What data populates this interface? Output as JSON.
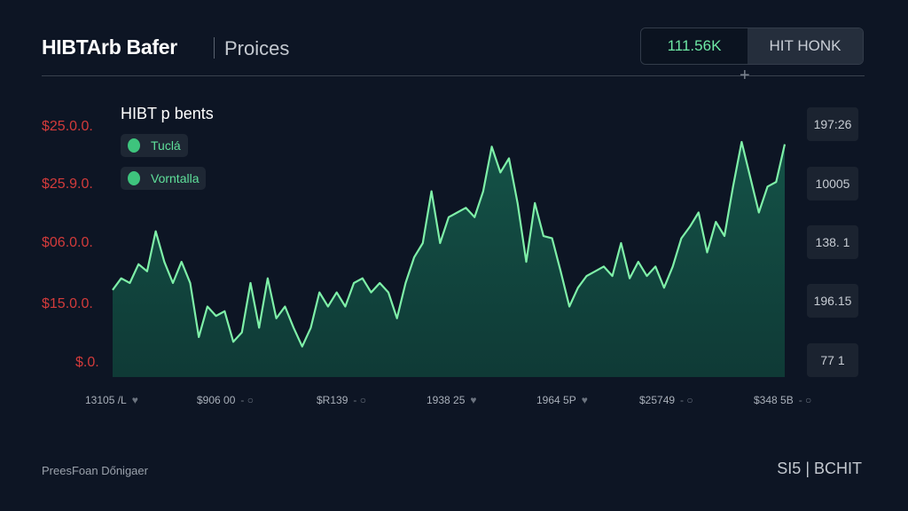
{
  "header": {
    "title": "HIBTArb Bafer",
    "subtitle": "Proices",
    "value_button": "111.56K",
    "action_button": "HIT HONK"
  },
  "legend": {
    "title": "HIBT p bents",
    "items": [
      {
        "label": "Tuclá",
        "icon": "leaf-icon"
      },
      {
        "label": "Vorntalla",
        "icon": "coins-icon"
      }
    ]
  },
  "right_values": [
    "197:26",
    "10005",
    "138. 1",
    "196.15",
    "77 1"
  ],
  "footer": {
    "left": "PreesFoan Dőnigaer",
    "right": "SI5 | BCHIT"
  },
  "colors": {
    "line": "#7ef0a8",
    "fill": "#0f3f38",
    "axis_red": "#d23b3b"
  },
  "chart_data": {
    "type": "area",
    "title": "HIBT p bents",
    "ytick_labels": [
      "$25.0.0.",
      "$25.9.0.",
      "$06.0.0.",
      "$15.0.0.",
      "$.0."
    ],
    "xtick_labels": [
      "13105 /L",
      "$906 00",
      "$R139",
      "1938 25",
      "1964 5P",
      "$25749",
      "$348 5B"
    ],
    "ylim": [
      0,
      100
    ],
    "values": [
      37,
      42,
      40,
      48,
      45,
      62,
      49,
      40,
      49,
      40,
      17,
      30,
      26,
      28,
      15,
      19,
      40,
      21,
      42,
      25,
      30,
      21,
      13,
      21,
      36,
      30,
      36,
      30,
      40,
      42,
      36,
      40,
      36,
      25,
      40,
      51,
      57,
      79,
      57,
      68,
      70,
      72,
      68,
      79,
      98,
      87,
      93,
      74,
      49,
      74,
      60,
      59,
      45,
      30,
      38,
      43,
      45,
      47,
      43,
      57,
      42,
      49,
      43,
      47,
      38,
      47,
      59,
      64,
      70,
      53,
      66,
      60,
      81,
      100,
      85,
      70,
      81,
      83,
      99
    ]
  }
}
